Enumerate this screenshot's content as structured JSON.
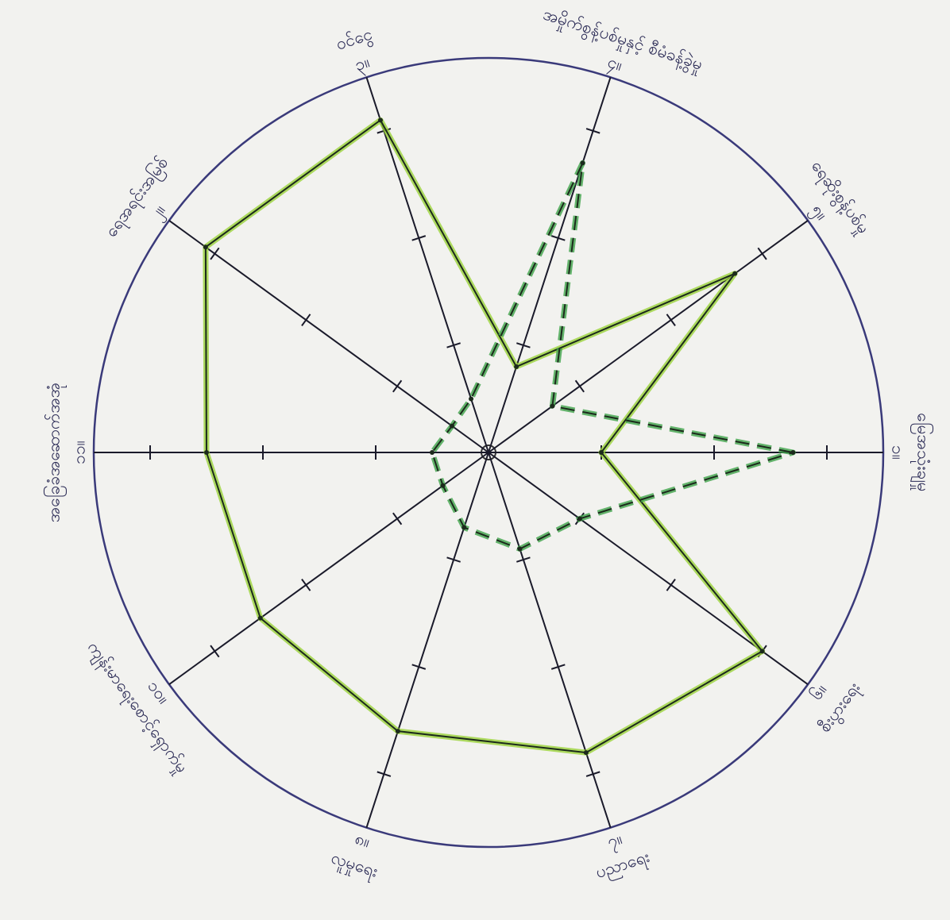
{
  "chart_data": {
    "type": "radar",
    "categories": [
      "မြေအသုံးချမှု",
      "ရေဆိုးစွန့်ပစ်မှု",
      "အမှိုက်စွန့်ပစ်မှုနှင့် စီမံခန့်ခွဲမှု",
      "ဝင်ငွေ",
      "ရေအရင်းအမြစ်",
      "အခြေခံအဆောက်အအုံ",
      "ကျန်းမာရေးစောင့်ရှောက်မှု",
      "လူမှုရေး",
      "ပညာရေး",
      "စီးပွားရေး"
    ],
    "axis_numbers": [
      "၁။",
      "၅။",
      "၄။",
      "၃။",
      "၂။",
      "၁၁။",
      "၁၀။",
      "၈။",
      "၇။",
      "၆။"
    ],
    "rlim": [
      0,
      3.5
    ],
    "rticks": [
      1,
      2,
      3
    ],
    "series": [
      {
        "color": "#9ad23a",
        "style": "solid",
        "values": [
          1,
          2.7,
          0.8,
          3.1,
          3.1,
          2.5,
          2.5,
          2.6,
          2.8,
          3.0
        ]
      },
      {
        "color": "#3fa34a",
        "style": "dashed",
        "values": [
          2.7,
          0.7,
          2.7,
          0.5,
          0.4,
          0.5,
          0.5,
          0.7,
          0.9,
          1.0
        ]
      }
    ]
  }
}
